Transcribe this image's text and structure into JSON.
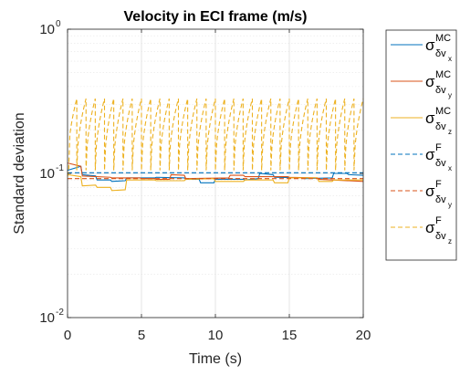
{
  "chart_data": {
    "type": "line",
    "title": "Velocity in ECI frame (m/s)",
    "xlabel": "Time (s)",
    "ylabel": "Standard deviation",
    "xlim": [
      0,
      20
    ],
    "ylim": [
      0.01,
      1
    ],
    "yscale": "log",
    "grid": true,
    "minor_grid": true,
    "legend_position": "outside-right",
    "xticks": [
      "0",
      "5",
      "10",
      "15",
      "20"
    ],
    "yticks": [
      {
        "base": "10",
        "exp": "0"
      },
      {
        "base": "10",
        "exp": "-1"
      },
      {
        "base": "10",
        "exp": "-2"
      }
    ],
    "series": [
      {
        "name": {
          "sym": "σ",
          "sup": "MC",
          "sub": "δv",
          "sub2": "x"
        },
        "color": "#0072BD",
        "dash": "solid",
        "points": [
          [
            0,
            0.105
          ],
          [
            0.9,
            0.112
          ],
          [
            1,
            0.098
          ],
          [
            1.9,
            0.096
          ],
          [
            2,
            0.09
          ],
          [
            2.9,
            0.09
          ],
          [
            3,
            0.088
          ],
          [
            3.9,
            0.089
          ],
          [
            4,
            0.093
          ],
          [
            5.9,
            0.093
          ],
          [
            6,
            0.094
          ],
          [
            7.9,
            0.093
          ],
          [
            8,
            0.091
          ],
          [
            8.9,
            0.091
          ],
          [
            9,
            0.086
          ],
          [
            9.9,
            0.086
          ],
          [
            10,
            0.091
          ],
          [
            11.9,
            0.091
          ],
          [
            12,
            0.09
          ],
          [
            12.9,
            0.092
          ],
          [
            13,
            0.1
          ],
          [
            13.9,
            0.098
          ],
          [
            14,
            0.094
          ],
          [
            15.9,
            0.093
          ],
          [
            16,
            0.092
          ],
          [
            17.9,
            0.093
          ],
          [
            18,
            0.1
          ],
          [
            18.9,
            0.1
          ],
          [
            19,
            0.098
          ],
          [
            20,
            0.097
          ]
        ]
      },
      {
        "name": {
          "sym": "σ",
          "sup": "MC",
          "sub": "δv",
          "sub2": "y"
        },
        "color": "#D95319",
        "dash": "solid",
        "points": [
          [
            0,
            0.118
          ],
          [
            0.9,
            0.112
          ],
          [
            1,
            0.096
          ],
          [
            2.9,
            0.094
          ],
          [
            3,
            0.093
          ],
          [
            4.9,
            0.093
          ],
          [
            5,
            0.092
          ],
          [
            5.9,
            0.092
          ],
          [
            6,
            0.091
          ],
          [
            6.9,
            0.091
          ],
          [
            7,
            0.098
          ],
          [
            7.9,
            0.097
          ],
          [
            8,
            0.092
          ],
          [
            10.9,
            0.093
          ],
          [
            11,
            0.097
          ],
          [
            11.9,
            0.097
          ],
          [
            12,
            0.095
          ],
          [
            14.9,
            0.095
          ],
          [
            15,
            0.094
          ],
          [
            16.9,
            0.093
          ],
          [
            17,
            0.091
          ],
          [
            20,
            0.088
          ]
        ]
      },
      {
        "name": {
          "sym": "σ",
          "sup": "MC",
          "sub": "δv",
          "sub2": "z"
        },
        "color": "#EDB120",
        "dash": "solid",
        "points": [
          [
            0,
            0.098
          ],
          [
            0.9,
            0.095
          ],
          [
            1,
            0.082
          ],
          [
            1.9,
            0.083
          ],
          [
            2,
            0.08
          ],
          [
            2.9,
            0.08
          ],
          [
            3,
            0.076
          ],
          [
            3.9,
            0.077
          ],
          [
            4,
            0.09
          ],
          [
            5.9,
            0.09
          ],
          [
            6,
            0.089
          ],
          [
            7.9,
            0.089
          ],
          [
            8,
            0.091
          ],
          [
            9.9,
            0.092
          ],
          [
            10,
            0.088
          ],
          [
            11.9,
            0.088
          ],
          [
            12,
            0.09
          ],
          [
            13.9,
            0.09
          ],
          [
            14,
            0.086
          ],
          [
            14.9,
            0.086
          ],
          [
            15,
            0.093
          ],
          [
            16.9,
            0.093
          ],
          [
            17,
            0.088
          ],
          [
            17.9,
            0.088
          ],
          [
            18,
            0.09
          ],
          [
            20,
            0.09
          ]
        ]
      },
      {
        "name": {
          "sym": "σ",
          "sup": "F",
          "sub": "δv",
          "sub2": "x"
        },
        "color": "#0072BD",
        "dash": "dashed",
        "points": [
          [
            0,
            0.101
          ],
          [
            20,
            0.101
          ]
        ]
      },
      {
        "name": {
          "sym": "σ",
          "sup": "F",
          "sub": "δv",
          "sub2": "y"
        },
        "color": "#D95319",
        "dash": "dashed",
        "points": [
          [
            0,
            0.092
          ],
          [
            20,
            0.092
          ]
        ]
      },
      {
        "name": {
          "sym": "σ",
          "sup": "F",
          "sub": "δv",
          "sub2": "z"
        },
        "color": "#EDB120",
        "dash": "dashed",
        "sawtooth": {
          "period": 0.625,
          "start_value": 0.095,
          "low": 0.105,
          "high": 0.33,
          "rise_exponent": 0.5
        }
      }
    ]
  }
}
